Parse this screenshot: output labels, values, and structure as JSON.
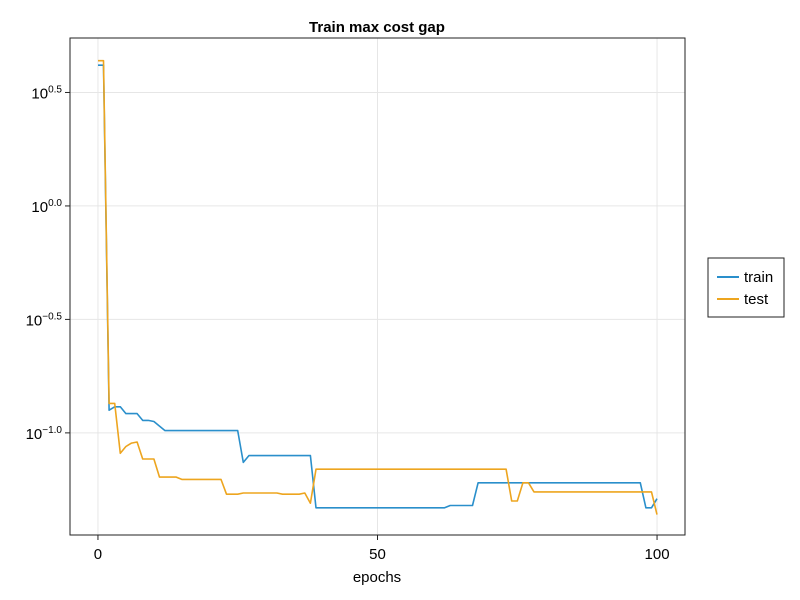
{
  "chart_data": {
    "type": "line",
    "title": "Train max cost gap",
    "xlabel": "epochs",
    "ylabel": "",
    "yscale": "log10",
    "xlim": [
      -5,
      105
    ],
    "ylim_log10": [
      -1.45,
      0.74
    ],
    "grid": true,
    "legend_position": "right",
    "x_ticks": [
      {
        "value": 0,
        "label": "0"
      },
      {
        "value": 50,
        "label": "50"
      },
      {
        "value": 100,
        "label": "100"
      }
    ],
    "y_ticks": [
      {
        "exp": 0.5,
        "base": "10",
        "sup": "0.5"
      },
      {
        "exp": 0.0,
        "base": "10",
        "sup": "0.0"
      },
      {
        "exp": -0.5,
        "base": "10",
        "sup": "−0.5"
      },
      {
        "exp": -1.0,
        "base": "10",
        "sup": "−1.0"
      }
    ],
    "series": [
      {
        "name": "train",
        "color": "#2a8fcb",
        "log10_values": [
          [
            0,
            0.62
          ],
          [
            1,
            0.62
          ],
          [
            2,
            -0.9
          ],
          [
            3,
            -0.885
          ],
          [
            4,
            -0.885
          ],
          [
            5,
            -0.915
          ],
          [
            6,
            -0.915
          ],
          [
            7,
            -0.915
          ],
          [
            8,
            -0.945
          ],
          [
            9,
            -0.945
          ],
          [
            10,
            -0.95
          ],
          [
            11,
            -0.97
          ],
          [
            12,
            -0.99
          ],
          [
            20,
            -0.99
          ],
          [
            24,
            -0.99
          ],
          [
            25,
            -0.99
          ],
          [
            26,
            -1.13
          ],
          [
            27,
            -1.1
          ],
          [
            30,
            -1.1
          ],
          [
            38,
            -1.1
          ],
          [
            39,
            -1.33
          ],
          [
            45,
            -1.33
          ],
          [
            55,
            -1.33
          ],
          [
            61,
            -1.33
          ],
          [
            62,
            -1.33
          ],
          [
            63,
            -1.32
          ],
          [
            67,
            -1.32
          ],
          [
            68,
            -1.22
          ],
          [
            75,
            -1.22
          ],
          [
            90,
            -1.22
          ],
          [
            97,
            -1.22
          ],
          [
            98,
            -1.33
          ],
          [
            99,
            -1.33
          ],
          [
            100,
            -1.29
          ]
        ]
      },
      {
        "name": "test",
        "color": "#eda51f",
        "log10_values": [
          [
            0,
            0.64
          ],
          [
            1,
            0.64
          ],
          [
            2,
            -0.87
          ],
          [
            3,
            -0.87
          ],
          [
            4,
            -1.09
          ],
          [
            5,
            -1.06
          ],
          [
            6,
            -1.045
          ],
          [
            7,
            -1.04
          ],
          [
            8,
            -1.115
          ],
          [
            9,
            -1.115
          ],
          [
            10,
            -1.115
          ],
          [
            11,
            -1.195
          ],
          [
            12,
            -1.195
          ],
          [
            14,
            -1.195
          ],
          [
            15,
            -1.205
          ],
          [
            22,
            -1.205
          ],
          [
            23,
            -1.27
          ],
          [
            24,
            -1.27
          ],
          [
            25,
            -1.27
          ],
          [
            26,
            -1.265
          ],
          [
            32,
            -1.265
          ],
          [
            33,
            -1.27
          ],
          [
            36,
            -1.27
          ],
          [
            37,
            -1.265
          ],
          [
            38,
            -1.31
          ],
          [
            39,
            -1.16
          ],
          [
            50,
            -1.16
          ],
          [
            60,
            -1.16
          ],
          [
            73,
            -1.16
          ],
          [
            74,
            -1.3
          ],
          [
            75,
            -1.3
          ],
          [
            76,
            -1.22
          ],
          [
            77,
            -1.22
          ],
          [
            78,
            -1.26
          ],
          [
            90,
            -1.26
          ],
          [
            99,
            -1.26
          ],
          [
            100,
            -1.36
          ]
        ]
      }
    ]
  }
}
